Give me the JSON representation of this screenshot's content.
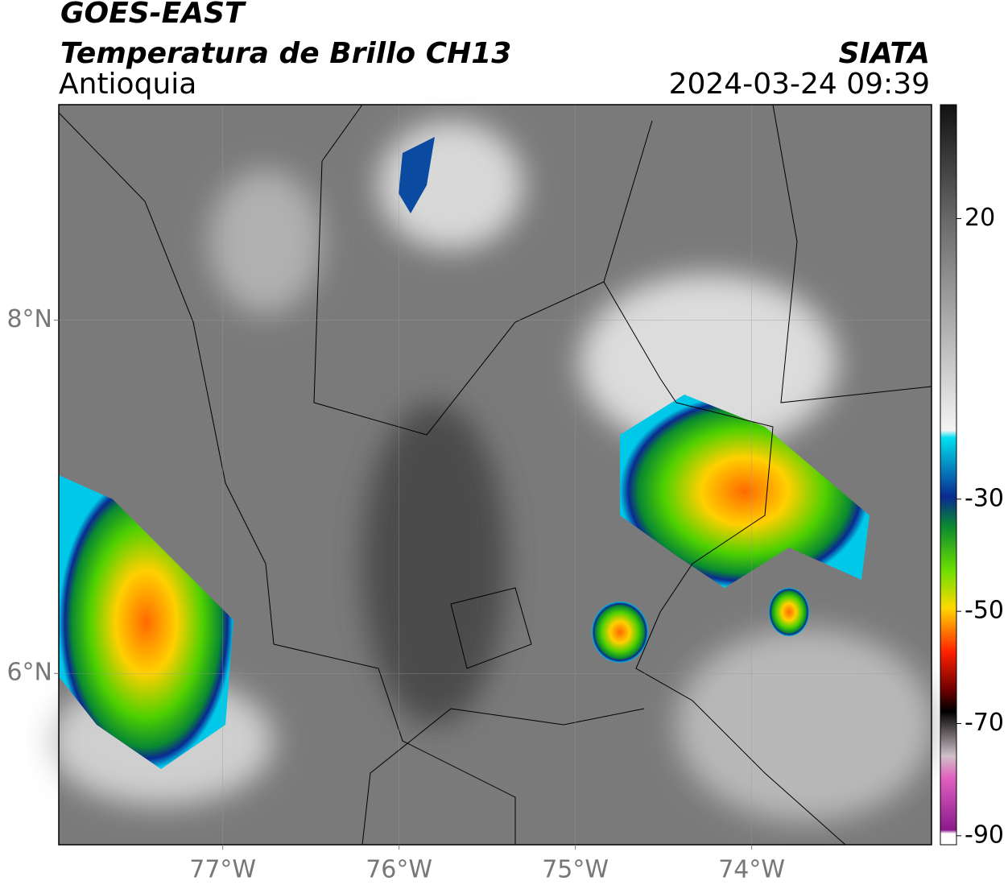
{
  "header": {
    "title": "GOES-EAST",
    "subtitle": "Temperatura de Brillo CH13",
    "region": "Antioquia",
    "source": "SIATA",
    "datetime": "2024-03-24 09:39"
  },
  "map": {
    "xlim": [
      -77.93,
      -72.98
    ],
    "ylim": [
      5.03,
      9.22
    ],
    "xticks": [
      {
        "value": -77,
        "label": "77°W"
      },
      {
        "value": -76,
        "label": "76°W"
      },
      {
        "value": -75,
        "label": "75°W"
      },
      {
        "value": -74,
        "label": "74°W"
      }
    ],
    "yticks": [
      {
        "value": 6,
        "label": "6°N"
      },
      {
        "value": 8,
        "label": "8°N"
      }
    ],
    "grid": true
  },
  "colorbar": {
    "lim": [
      -91.6,
      40.3
    ],
    "ticks": [
      20,
      -30,
      -50,
      -70,
      -90
    ]
  }
}
